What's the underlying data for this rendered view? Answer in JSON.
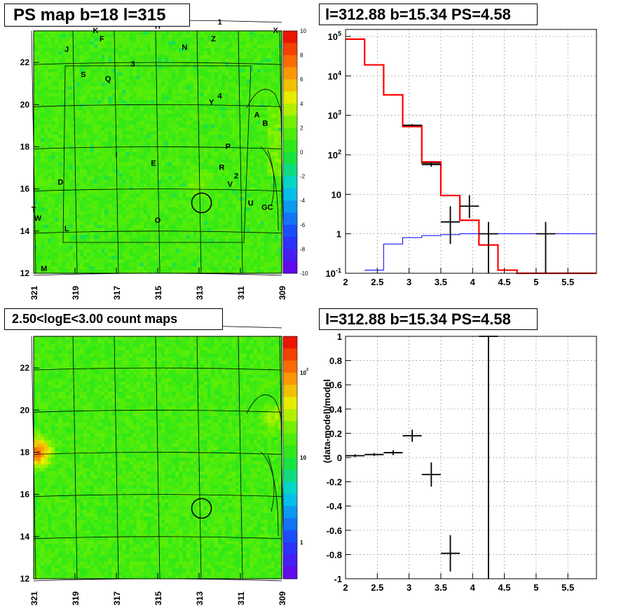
{
  "panels": {
    "top_left": {
      "title": "PS map b=18 l=315"
    },
    "top_right": {
      "title": "l=312.88 b=15.34 PS=4.58"
    },
    "bottom_left": {
      "title": "2.50<logE<3.00 count maps"
    },
    "bottom_right": {
      "title": "l=312.88 b=15.34 PS=4.58"
    }
  },
  "chart_data": [
    {
      "type": "heatmap",
      "title": "PS map b=18 l=315",
      "x_ticks": [
        "321",
        "319",
        "317",
        "315",
        "313",
        "311",
        "309"
      ],
      "y_ticks": [
        "12",
        "14",
        "16",
        "18",
        "20",
        "22"
      ],
      "xlim": [
        321,
        309
      ],
      "ylim": [
        12,
        23.5
      ],
      "colorbar": {
        "scale": "linear",
        "range": [
          -10,
          10
        ],
        "ticks": [
          "10",
          "8",
          "6",
          "4",
          "2",
          "0",
          "-2",
          "-4",
          "-6",
          "-8",
          "-10"
        ]
      },
      "source_labels": [
        {
          "text": "K",
          "l": 318.0,
          "b": 23.4
        },
        {
          "text": "F",
          "l": 317.7,
          "b": 23.0
        },
        {
          "text": "H",
          "l": 315.0,
          "b": 23.6
        },
        {
          "text": "1",
          "l": 312.0,
          "b": 23.8
        },
        {
          "text": "Z",
          "l": 312.3,
          "b": 23.0
        },
        {
          "text": "X",
          "l": 309.3,
          "b": 23.4
        },
        {
          "text": "J",
          "l": 319.4,
          "b": 22.5
        },
        {
          "text": "N",
          "l": 313.7,
          "b": 22.6
        },
        {
          "text": "3",
          "l": 316.2,
          "b": 21.8
        },
        {
          "text": "S",
          "l": 318.6,
          "b": 21.3
        },
        {
          "text": "Q",
          "l": 317.4,
          "b": 21.1
        },
        {
          "text": "4",
          "l": 312.0,
          "b": 20.3
        },
        {
          "text": "Y",
          "l": 312.4,
          "b": 20.0
        },
        {
          "text": "A",
          "l": 310.2,
          "b": 19.4
        },
        {
          "text": "B",
          "l": 309.8,
          "b": 19.0
        },
        {
          "text": "P",
          "l": 311.6,
          "b": 17.9
        },
        {
          "text": "I",
          "l": 317.0,
          "b": 17.5
        },
        {
          "text": "E",
          "l": 315.2,
          "b": 17.1
        },
        {
          "text": "R",
          "l": 311.9,
          "b": 16.9
        },
        {
          "text": "2",
          "l": 311.2,
          "b": 16.5
        },
        {
          "text": "V",
          "l": 311.5,
          "b": 16.1
        },
        {
          "text": "D",
          "l": 319.7,
          "b": 16.2
        },
        {
          "text": "U",
          "l": 310.5,
          "b": 15.2
        },
        {
          "text": "GC",
          "l": 309.7,
          "b": 15.0
        },
        {
          "text": "T",
          "l": 321.0,
          "b": 14.9
        },
        {
          "text": "W",
          "l": 320.8,
          "b": 14.5
        },
        {
          "text": "O",
          "l": 315.0,
          "b": 14.4
        },
        {
          "text": "L",
          "l": 319.4,
          "b": 14.0
        },
        {
          "text": "M",
          "l": 320.5,
          "b": 12.1
        }
      ],
      "circle": {
        "l": 312.88,
        "b": 15.34
      }
    },
    {
      "type": "line",
      "title": "l=312.88 b=15.34 PS=4.58",
      "x_ticks": [
        "2",
        "2.5",
        "3",
        "3.5",
        "4",
        "4.5",
        "5",
        "5.5"
      ],
      "y_ticks": [
        "10^-1",
        "1",
        "10",
        "10^2",
        "10^3",
        "10^4",
        "10^5"
      ],
      "xlim": [
        2.0,
        5.95
      ],
      "ylim": [
        0.1,
        150000
      ],
      "yscale": "log",
      "grid": true,
      "series": [
        {
          "kind": "step",
          "color": "#000000",
          "edges": [
            2.0,
            2.3,
            2.6,
            2.9,
            3.2,
            3.5,
            3.8,
            4.1,
            4.4,
            4.7,
            5.0,
            5.3,
            5.6,
            5.95
          ],
          "values": [
            85000,
            19000,
            3300,
            560,
            62,
            9.3,
            2.2,
            0.52,
            0.12,
            0.1,
            0.1,
            0.1,
            0.1
          ]
        },
        {
          "kind": "step",
          "color": "#ff0000",
          "edges": [
            2.0,
            2.3,
            2.6,
            2.9,
            3.2,
            3.5,
            3.8,
            4.1,
            4.4,
            4.7,
            5.0,
            5.3,
            5.6,
            5.95
          ],
          "values": [
            85000,
            19000,
            3300,
            520,
            66,
            9.3,
            2.2,
            0.52,
            0.12,
            0.1,
            0.1,
            0.1,
            0.1
          ]
        },
        {
          "kind": "step",
          "color": "#0000ff",
          "edges": [
            2.3,
            2.6,
            2.9,
            3.2,
            3.5,
            3.8,
            4.1,
            4.4,
            4.7,
            5.0,
            5.3,
            5.6,
            5.95
          ],
          "values": [
            0.12,
            0.55,
            0.8,
            0.9,
            0.95,
            1.0,
            1.0,
            1.0,
            1.0,
            1.0,
            1.0,
            1.0
          ]
        },
        {
          "kind": "points",
          "color": "#000000",
          "points": [
            {
              "x": 3.05,
              "y": 560,
              "xerr": 0.15,
              "ylo": 520,
              "yhi": 600
            },
            {
              "x": 3.35,
              "y": 57,
              "xerr": 0.15,
              "ylo": 50,
              "yhi": 65
            },
            {
              "x": 3.65,
              "y": 2.0,
              "xerr": 0.15,
              "ylo": 0.55,
              "yhi": 5.0
            },
            {
              "x": 3.95,
              "y": 5.0,
              "xerr": 0.15,
              "ylo": 2.5,
              "yhi": 9.5
            },
            {
              "x": 4.25,
              "y": 1.0,
              "xerr": 0.15,
              "ylo": 0.1,
              "yhi": 2.0
            },
            {
              "x": 5.15,
              "y": 1.0,
              "xerr": 0.15,
              "ylo": 0.1,
              "yhi": 2.0
            }
          ]
        }
      ]
    },
    {
      "type": "heatmap",
      "title": "2.50<logE<3.00 count maps",
      "x_ticks": [
        "321",
        "319",
        "317",
        "315",
        "313",
        "311",
        "309"
      ],
      "y_ticks": [
        "12",
        "14",
        "16",
        "18",
        "20",
        "22"
      ],
      "xlim": [
        321,
        309
      ],
      "ylim": [
        12,
        23.5
      ],
      "colorbar": {
        "scale": "log",
        "ticks": [
          "10^2",
          "10",
          "1"
        ]
      },
      "circle": {
        "l": 312.88,
        "b": 15.34
      }
    },
    {
      "type": "scatter",
      "title": "l=312.88 b=15.34 PS=4.58",
      "ylabel": "(data-model)/model",
      "x_ticks": [
        "2",
        "2.5",
        "3",
        "3.5",
        "4",
        "4.5",
        "5",
        "5.5"
      ],
      "y_ticks": [
        "1",
        "0.8",
        "0.6",
        "0.4",
        "0.2",
        "0",
        "-0.2",
        "-0.4",
        "-0.6",
        "-0.8",
        "-1"
      ],
      "xlim": [
        2.0,
        5.95
      ],
      "ylim": [
        -1,
        1
      ],
      "grid": true,
      "points": [
        {
          "x": 2.15,
          "y": 0.015,
          "xerr": 0.15,
          "yerr": 0.012
        },
        {
          "x": 2.45,
          "y": 0.025,
          "xerr": 0.15,
          "yerr": 0.012
        },
        {
          "x": 2.75,
          "y": 0.04,
          "xerr": 0.15,
          "yerr": 0.02
        },
        {
          "x": 3.05,
          "y": 0.18,
          "xerr": 0.15,
          "yerr": 0.05
        },
        {
          "x": 3.35,
          "y": -0.14,
          "xerr": 0.15,
          "yerr": 0.1
        },
        {
          "x": 3.65,
          "y": -0.79,
          "xerr": 0.15,
          "yerr": 0.15
        },
        {
          "x": 4.25,
          "y": 1.0,
          "xerr": 0.15,
          "yerr": 2.0
        }
      ]
    }
  ]
}
